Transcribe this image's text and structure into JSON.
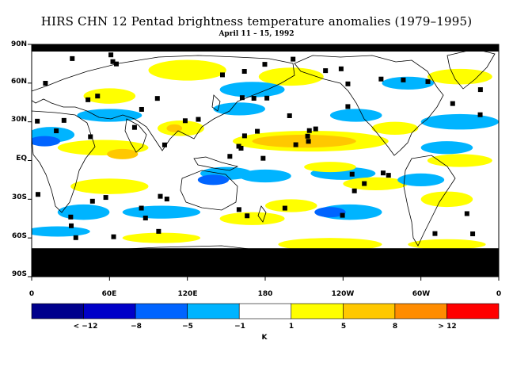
{
  "title": "HIRS CHN 12 Pentad brightness temperature anomalies (1979–1995)",
  "subtitle": "April 11 – 15, 1992",
  "map": {
    "projection": "equirectangular",
    "lat_labels": [
      "90N",
      "60N",
      "30N",
      "EQ",
      "30S",
      "60S",
      "90S"
    ],
    "lon_labels": [
      "0",
      "60E",
      "120E",
      "180",
      "120W",
      "60W",
      "0"
    ],
    "missing_data_color": "#000000",
    "coastline_color": "#000000"
  },
  "colorbar": {
    "unit": "K",
    "tick_labels": [
      "< −12",
      "−8",
      "−5",
      "−1",
      "1",
      "5",
      "8",
      "> 12"
    ],
    "colors": [
      "#00008c",
      "#0000c8",
      "#0064ff",
      "#00b4ff",
      "#ffffff",
      "#ffff00",
      "#ffc800",
      "#ff8c00",
      "#ff0000"
    ]
  }
}
